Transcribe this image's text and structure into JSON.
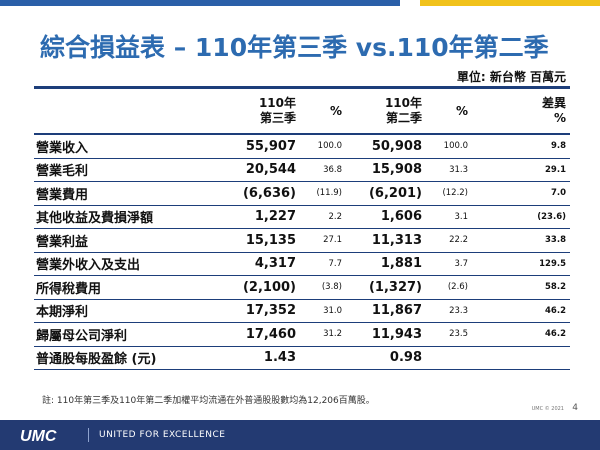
{
  "colors": {
    "title": "#2d6bb0",
    "rule": "#1d3e7a",
    "footer_bg": "#233a72",
    "top_bar": [
      "#2a5fa8",
      "#ffffff",
      "#f1c21b"
    ]
  },
  "slide": {
    "title": "綜合損益表 – 110年第三季 vs.110年第二季",
    "unit": "單位: 新台幣 百萬元",
    "note": "註: 110年第三季及110年第二季加權平均流通在外普通股股數均為12,206百萬股。",
    "copyright": "UMC © 2021",
    "page_number": "4",
    "footer": {
      "logo_text": "UMC",
      "tagline": "UNITED FOR EXCELLENCE"
    }
  },
  "table": {
    "headers": {
      "q3_line1": "110年",
      "q3_line2": "第三季",
      "q3_pct": "%",
      "q2_line1": "110年",
      "q2_line2": "第二季",
      "q2_pct": "%",
      "diff_line1": "差異",
      "diff_line2": "%"
    },
    "rows": [
      {
        "label": "營業收入",
        "q3": "55,907",
        "q3_pct": "100.0",
        "q2": "50,908",
        "q2_pct": "100.0",
        "diff": "9.8"
      },
      {
        "label": "營業毛利",
        "q3": "20,544",
        "q3_pct": "36.8",
        "q2": "15,908",
        "q2_pct": "31.3",
        "diff": "29.1"
      },
      {
        "label": "營業費用",
        "q3": "(6,636)",
        "q3_pct": "(11.9)",
        "q2": "(6,201)",
        "q2_pct": "(12.2)",
        "diff": "7.0"
      },
      {
        "label": "其他收益及費損淨額",
        "q3": "1,227",
        "q3_pct": "2.2",
        "q2": "1,606",
        "q2_pct": "3.1",
        "diff": "(23.6)"
      },
      {
        "label": "營業利益",
        "q3": "15,135",
        "q3_pct": "27.1",
        "q2": "11,313",
        "q2_pct": "22.2",
        "diff": "33.8"
      },
      {
        "label": "營業外收入及支出",
        "q3": "4,317",
        "q3_pct": "7.7",
        "q2": "1,881",
        "q2_pct": "3.7",
        "diff": "129.5"
      },
      {
        "label": "所得稅費用",
        "q3": "(2,100)",
        "q3_pct": "(3.8)",
        "q2": "(1,327)",
        "q2_pct": "(2.6)",
        "diff": "58.2"
      },
      {
        "label": "本期淨利",
        "q3": "17,352",
        "q3_pct": "31.0",
        "q2": "11,867",
        "q2_pct": "23.3",
        "diff": "46.2"
      },
      {
        "label": "歸屬母公司淨利",
        "q3": "17,460",
        "q3_pct": "31.2",
        "q2": "11,943",
        "q2_pct": "23.5",
        "diff": "46.2"
      },
      {
        "label": "普通股每股盈餘 (元)",
        "q3": "1.43",
        "q3_pct": "",
        "q2": "0.98",
        "q2_pct": "",
        "diff": ""
      }
    ]
  }
}
